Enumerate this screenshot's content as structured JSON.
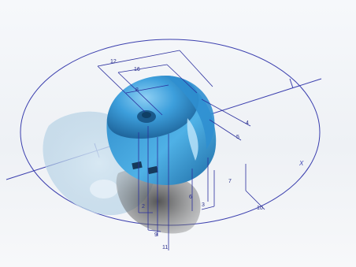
{
  "viewport": {
    "background_top": "#f6f8fb",
    "background_bottom": "#eef1f5"
  },
  "model": {
    "body_color": "#3d9fdc",
    "body_highlight": "#7cc6f0",
    "body_shadow": "#1f6fa8",
    "ghost_color": "#b9d6ea",
    "shadow_color": "#3a3a3a",
    "sketch_color": "#2b2f9e"
  },
  "dimensions": {
    "labels": [
      "12",
      "16",
      "8",
      "4",
      "5",
      "7",
      "3",
      "6",
      "2",
      "9",
      "11",
      "10"
    ]
  },
  "axis": {
    "label": "X"
  }
}
